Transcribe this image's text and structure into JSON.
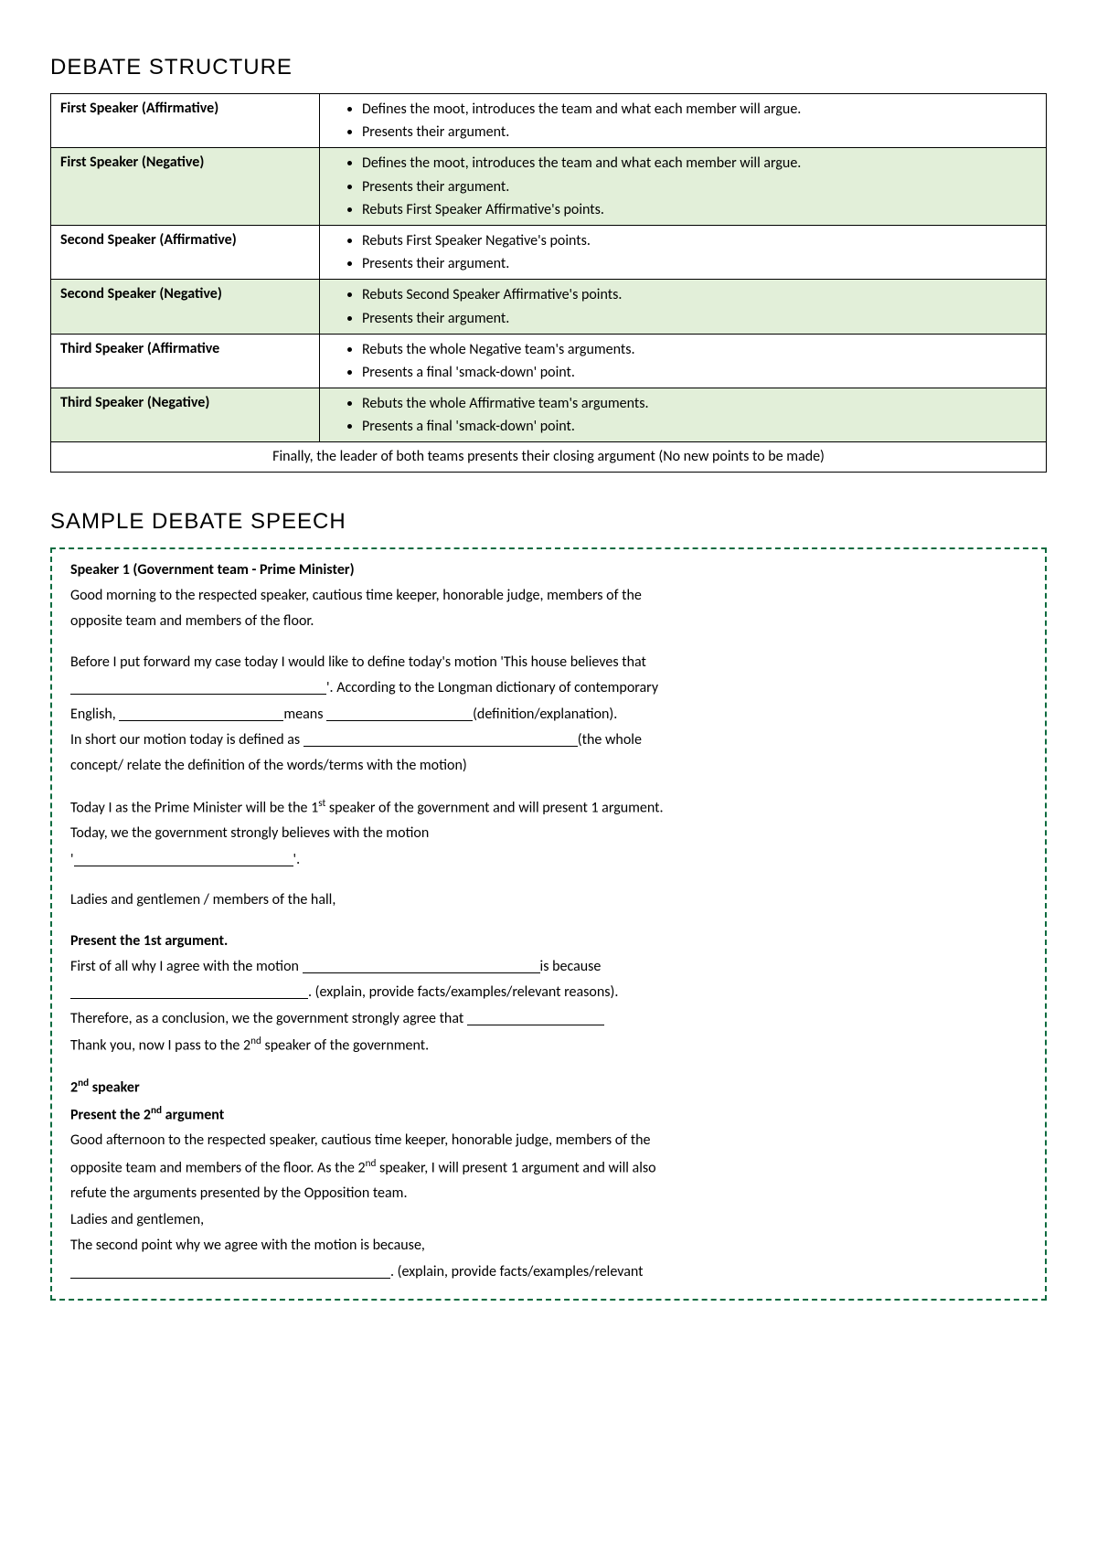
{
  "headings": {
    "structure": "Debate Structure",
    "sample": "Sample Debate Speech"
  },
  "structure": {
    "rows": [
      {
        "role": "First Speaker (Affirmative)",
        "shaded": false,
        "points": [
          "Defines the moot, introduces the team and what each member will argue.",
          "Presents their argument."
        ]
      },
      {
        "role": "First Speaker (Negative)",
        "shaded": true,
        "points": [
          "Defines the moot, introduces the team and what each member will argue.",
          "Presents their argument.",
          "Rebuts First Speaker Affirmative's points."
        ]
      },
      {
        "role": "Second Speaker (Affirmative)",
        "shaded": false,
        "points": [
          "Rebuts First Speaker Negative's points.",
          "Presents their argument."
        ]
      },
      {
        "role": "Second Speaker (Negative)",
        "shaded": true,
        "points": [
          "Rebuts Second Speaker Affirmative's points.",
          "Presents their argument."
        ]
      },
      {
        "role": "Third Speaker (Affirmative",
        "shaded": false,
        "points": [
          "Rebuts the whole Negative team's arguments.",
          "Presents a final 'smack-down' point."
        ]
      },
      {
        "role": "Third Speaker (Negative)",
        "shaded": true,
        "points": [
          "Rebuts the whole Affirmative team's arguments.",
          "Presents a final 'smack-down' point."
        ]
      }
    ],
    "final": "Finally, the leader of both teams presents their closing argument (No new points to be made)"
  },
  "speech": {
    "speaker1_title": "Speaker 1 (Government team - Prime Minister)",
    "greeting1_a": "Good morning to the respected speaker, cautious time keeper, honorable judge, members of the",
    "greeting1_b": "opposite team and members of the floor.",
    "before_case": "Before I put forward my case today I would like to define today's motion 'This house believes that",
    "according": "'. According to the Longman dictionary of contemporary",
    "english": "English, ",
    "means": "means ",
    "def_expl": "(definition/explanation).",
    "in_short": "In short our motion today is defined as ",
    "the_whole": "(the whole",
    "concept": "concept/ relate the definition of the words/terms with the motion)",
    "today_pm_a": "Today I as the Prime Minister will be the 1",
    "today_pm_b": " speaker of the government and will present 1 argument.",
    "today_gov": "Today, we the government strongly believes with the motion",
    "quote_open": "'",
    "quote_close": "'.",
    "ladies1": "Ladies and gentlemen / members of the hall,",
    "present1": "Present the 1st argument.",
    "first_of_all": "First of all why I agree with the motion ",
    "is_because": "is because",
    "explain1": ". (explain, provide facts/examples/relevant reasons).",
    "therefore": "Therefore, as a conclusion, we the government strongly agree that ",
    "thank_you_a": "Thank you, now I pass to the 2",
    "thank_you_b": " speaker of the government.",
    "speaker2_title_a": "2",
    "speaker2_title_b": " speaker",
    "present2_a": "Present the 2",
    "present2_b": " argument",
    "greeting2_a": "Good afternoon to the respected speaker, cautious time keeper, honorable judge, members of the",
    "greeting2_b_a": "opposite team and members of the floor. As the 2",
    "greeting2_b_b": " speaker, I will present 1 argument and will also",
    "greeting2_c": "refute the arguments presented by the Opposition team.",
    "ladies2": "Ladies and gentlemen,",
    "second_point": "The second point why we agree with the motion is because,",
    "explain2": ". (explain, provide facts/examples/relevant",
    "sup_st": "st",
    "sup_nd": "nd"
  },
  "blanks": {
    "w280": 280,
    "w180": 180,
    "w160": 160,
    "w300": 300,
    "w240": 240,
    "w260": 260,
    "w150": 150,
    "w350": 350
  },
  "colors": {
    "shaded_bg": "#e2efd9",
    "dashed_border": "#0c6b3f",
    "text": "#000000",
    "page_bg": "#ffffff"
  }
}
